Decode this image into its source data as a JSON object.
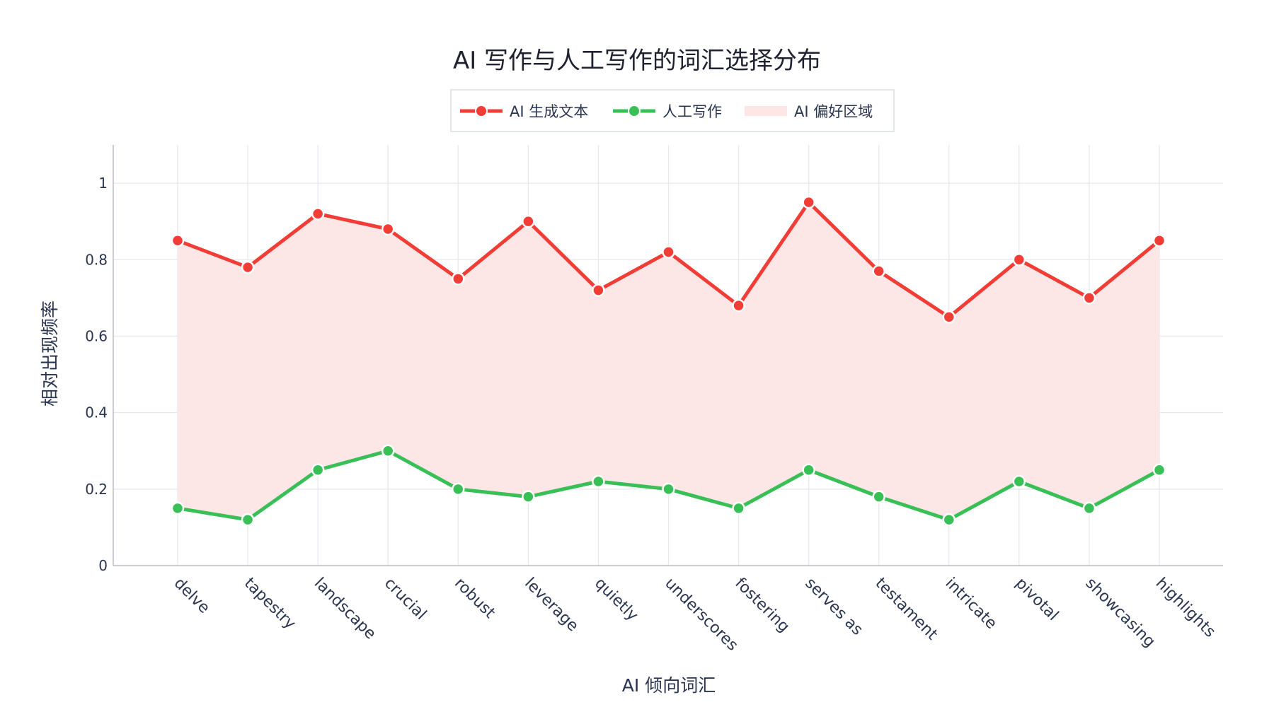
{
  "chart_data": {
    "type": "line",
    "title": "AI 写作与人工写作的词汇选择分布",
    "xlabel": "AI 倾向词汇",
    "ylabel": "相对出现频率",
    "categories": [
      "delve",
      "tapestry",
      "landscape",
      "crucial",
      "robust",
      "leverage",
      "quietly",
      "underscores",
      "fostering",
      "serves as",
      "testament",
      "intricate",
      "pivotal",
      "showcasing",
      "highlights"
    ],
    "series": [
      {
        "name": "AI 生成文本",
        "color": "#f23d36",
        "values": [
          0.85,
          0.78,
          0.92,
          0.88,
          0.75,
          0.9,
          0.72,
          0.82,
          0.68,
          0.95,
          0.77,
          0.65,
          0.8,
          0.7,
          0.85
        ]
      },
      {
        "name": "人工写作",
        "color": "#38bf55",
        "values": [
          0.15,
          0.12,
          0.25,
          0.3,
          0.2,
          0.18,
          0.22,
          0.2,
          0.15,
          0.25,
          0.18,
          0.12,
          0.22,
          0.15,
          0.25
        ]
      }
    ],
    "fill": {
      "name": "AI 偏好区域",
      "color": "#fde6e6"
    },
    "ylim": [
      0,
      1.1
    ],
    "yticks": [
      0,
      0.2,
      0.4,
      0.6,
      0.8,
      1
    ],
    "ytick_labels": [
      "0",
      "0.2",
      "0.4",
      "0.6",
      "0.8",
      "1"
    ],
    "grid": true,
    "legend_position": "top-center"
  }
}
